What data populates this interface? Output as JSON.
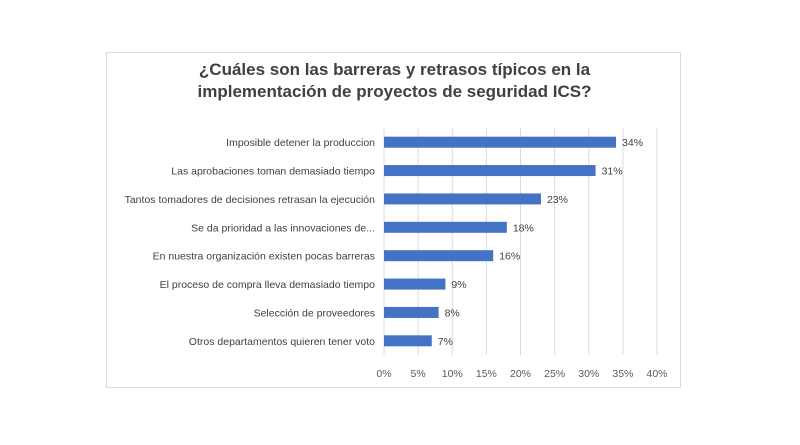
{
  "chart_data": {
    "type": "bar",
    "orientation": "horizontal",
    "title_lines": [
      "¿Cuáles son las barreras y retrasos típicos en la",
      "implementación de proyectos de seguridad ICS?"
    ],
    "categories": [
      "Imposible detener la produccion",
      "Las aprobaciones toman demasiado tiempo",
      "Tantos tomadores de decisiones retrasan la ejecución",
      "Se da prioridad a las innovaciones de...",
      "En nuestra organización existen pocas barreras",
      "El proceso de compra lleva demasiado tiempo",
      "Selección de proveedores",
      "Otros departamentos quieren tener voto"
    ],
    "values": [
      34,
      31,
      23,
      18,
      16,
      9,
      8,
      7
    ],
    "value_labels": [
      "34%",
      "31%",
      "23%",
      "18%",
      "16%",
      "9%",
      "8%",
      "7%"
    ],
    "xlim": [
      0,
      40
    ],
    "x_ticks": [
      0,
      5,
      10,
      15,
      20,
      25,
      30,
      35,
      40
    ],
    "x_tick_labels": [
      "0%",
      "5%",
      "10%",
      "15%",
      "20%",
      "25%",
      "30%",
      "35%",
      "40%"
    ],
    "grid": "vertical",
    "legend": "none",
    "bar_color": "#4472c4",
    "grid_color": "#d9d9d9"
  }
}
